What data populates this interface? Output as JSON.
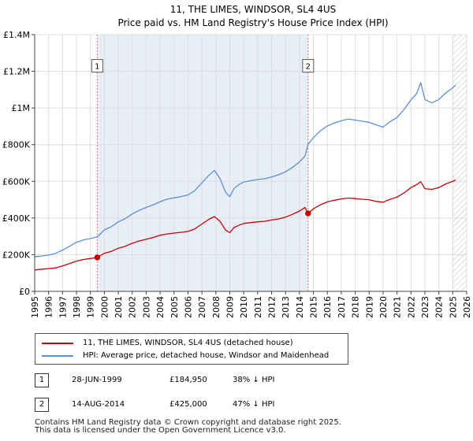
{
  "chart_data": {
    "type": "line",
    "title": "11, THE LIMES, WINDSOR, SL4 4US",
    "subtitle": "Price paid vs. HM Land Registry's House Price Index (HPI)",
    "xlabel": "",
    "ylabel": "",
    "xlim": [
      1995,
      2026
    ],
    "ylim": [
      0,
      1400000
    ],
    "grid": true,
    "x_ticks": [
      "1995",
      "1996",
      "1997",
      "1998",
      "1999",
      "2000",
      "2001",
      "2002",
      "2003",
      "2004",
      "2005",
      "2006",
      "2007",
      "2008",
      "2009",
      "2010",
      "2011",
      "2012",
      "2013",
      "2014",
      "2015",
      "2016",
      "2017",
      "2018",
      "2019",
      "2020",
      "2021",
      "2022",
      "2023",
      "2024",
      "2025",
      "2026"
    ],
    "y_ticks": [
      {
        "value": 0,
        "label": "£0"
      },
      {
        "value": 200000,
        "label": "£200K"
      },
      {
        "value": 400000,
        "label": "£400K"
      },
      {
        "value": 600000,
        "label": "£600K"
      },
      {
        "value": 800000,
        "label": "£800K"
      },
      {
        "value": 1000000,
        "label": "£1M"
      },
      {
        "value": 1200000,
        "label": "£1.2M"
      },
      {
        "value": 1400000,
        "label": "£1.4M"
      }
    ],
    "series": [
      {
        "name": "11, THE LIMES, WINDSOR, SL4 4US (detached house)",
        "color": "#cc0000",
        "x": [
          1995.0,
          1995.5,
          1996.0,
          1996.5,
          1997.0,
          1997.5,
          1998.0,
          1998.5,
          1999.0,
          1999.49,
          2000.0,
          2000.5,
          2001.0,
          2001.5,
          2002.0,
          2002.5,
          2003.0,
          2003.5,
          2004.0,
          2004.5,
          2005.0,
          2005.5,
          2006.0,
          2006.5,
          2007.0,
          2007.5,
          2007.9,
          2008.3,
          2008.7,
          2009.0,
          2009.3,
          2009.7,
          2010.0,
          2010.5,
          2011.0,
          2011.5,
          2012.0,
          2012.5,
          2013.0,
          2013.5,
          2014.0,
          2014.4,
          2014.62,
          2015.0,
          2015.5,
          2016.0,
          2016.5,
          2017.0,
          2017.5,
          2018.0,
          2018.5,
          2019.0,
          2019.5,
          2020.0,
          2020.5,
          2021.0,
          2021.5,
          2022.0,
          2022.4,
          2022.7,
          2023.0,
          2023.5,
          2024.0,
          2024.5,
          2025.0,
          2025.2
        ],
        "values": [
          117000,
          121000,
          124000,
          128000,
          139000,
          152000,
          165000,
          174000,
          179000,
          184950,
          208000,
          218000,
          235000,
          246000,
          262000,
          275000,
          284000,
          294000,
          306000,
          313000,
          318000,
          322000,
          327000,
          341000,
          367000,
          393000,
          408000,
          382000,
          334000,
          320000,
          348000,
          362000,
          370000,
          375000,
          379000,
          382000,
          389000,
          395000,
          405000,
          420000,
          438000,
          458000,
          425000,
          450000,
          472000,
          488000,
          497000,
          504000,
          509000,
          506000,
          502000,
          500000,
          491000,
          486000,
          502000,
          514000,
          537000,
          566000,
          582000,
          598000,
          560000,
          556000,
          566000,
          586000,
          600000,
          608000
        ]
      },
      {
        "name": "HPI: Average price, detached house, Windsor and Maidenhead",
        "color": "#5b8fd6",
        "x": [
          1995.0,
          1995.5,
          1996.0,
          1996.5,
          1997.0,
          1997.5,
          1998.0,
          1998.5,
          1999.0,
          1999.49,
          2000.0,
          2000.5,
          2001.0,
          2001.5,
          2002.0,
          2002.5,
          2003.0,
          2003.5,
          2004.0,
          2004.5,
          2005.0,
          2005.5,
          2006.0,
          2006.5,
          2007.0,
          2007.5,
          2007.9,
          2008.3,
          2008.7,
          2009.0,
          2009.3,
          2009.7,
          2010.0,
          2010.5,
          2011.0,
          2011.5,
          2012.0,
          2012.5,
          2013.0,
          2013.5,
          2014.0,
          2014.4,
          2014.62,
          2015.0,
          2015.5,
          2016.0,
          2016.5,
          2017.0,
          2017.5,
          2018.0,
          2018.5,
          2019.0,
          2019.5,
          2020.0,
          2020.5,
          2021.0,
          2021.5,
          2022.0,
          2022.4,
          2022.7,
          2023.0,
          2023.5,
          2024.0,
          2024.5,
          2025.0,
          2025.2
        ],
        "values": [
          188000,
          193000,
          198000,
          207000,
          225000,
          246000,
          268000,
          281000,
          288000,
          297000,
          335000,
          353000,
          379000,
          397000,
          422000,
          442000,
          458000,
          472000,
          489000,
          503000,
          510000,
          517000,
          526000,
          550000,
          592000,
          633000,
          660000,
          615000,
          540000,
          516000,
          561000,
          585000,
          596000,
          604000,
          610000,
          614000,
          624000,
          636000,
          652000,
          676000,
          706000,
          738000,
          802000,
          838000,
          876000,
          902000,
          918000,
          930000,
          940000,
          934000,
          928000,
          922000,
          908000,
          896000,
          926000,
          948000,
          992000,
          1045000,
          1078000,
          1138000,
          1046000,
          1028000,
          1046000,
          1082000,
          1110000,
          1125000
        ]
      }
    ],
    "annotations": [
      {
        "label": "1",
        "x": 1999.49,
        "box_value": 1230000
      },
      {
        "label": "2",
        "x": 2014.62,
        "box_value": 1230000
      }
    ],
    "shaded_range": [
      1999.49,
      2014.62
    ],
    "future_hatch_from": 2025.0,
    "sale_points": [
      {
        "x": 1999.49,
        "value": 184950
      },
      {
        "x": 2014.62,
        "value": 425000
      }
    ]
  },
  "legend": {
    "property_label": "11, THE LIMES, WINDSOR, SL4 4US (detached house)",
    "hpi_label": "HPI: Average price, detached house, Windsor and Maidenhead"
  },
  "transactions": [
    {
      "num": "1",
      "date": "28-JUN-1999",
      "price": "£184,950",
      "hpi": "38% ↓ HPI"
    },
    {
      "num": "2",
      "date": "14-AUG-2014",
      "price": "£425,000",
      "hpi": "47% ↓ HPI"
    }
  ],
  "footer": {
    "line1": "Contains HM Land Registry data © Crown copyright and database right 2025.",
    "line2": "This data is licensed under the Open Government Licence v3.0."
  },
  "colors": {
    "property": "#cc0000",
    "hpi": "#5b8fd6",
    "shade": "#e8eef8",
    "grid": "#dddddd"
  }
}
